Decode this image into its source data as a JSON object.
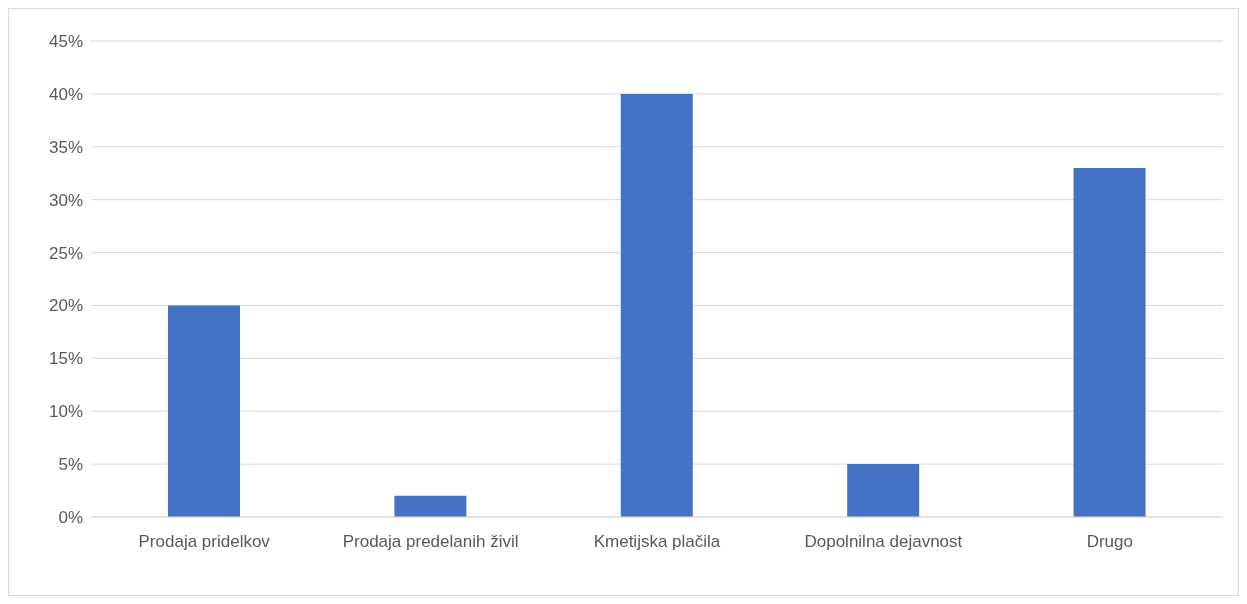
{
  "chart_data": {
    "type": "bar",
    "categories": [
      "Prodaja pridelkov",
      "Prodaja predelanih živil",
      "Kmetijska plačila",
      "Dopolnilna dejavnost",
      "Drugo"
    ],
    "values": [
      20,
      2,
      40,
      5,
      33
    ],
    "color": "#4472c4",
    "ylim": [
      0,
      45
    ],
    "yticks": [
      {
        "value": 0,
        "label": "0%"
      },
      {
        "value": 5,
        "label": "5%"
      },
      {
        "value": 10,
        "label": "10%"
      },
      {
        "value": 15,
        "label": "15%"
      },
      {
        "value": 20,
        "label": "20%"
      },
      {
        "value": 25,
        "label": "25%"
      },
      {
        "value": 30,
        "label": "30%"
      },
      {
        "value": 35,
        "label": "35%"
      },
      {
        "value": 40,
        "label": "40%"
      },
      {
        "value": 45,
        "label": "45%"
      }
    ],
    "grid": "y"
  }
}
